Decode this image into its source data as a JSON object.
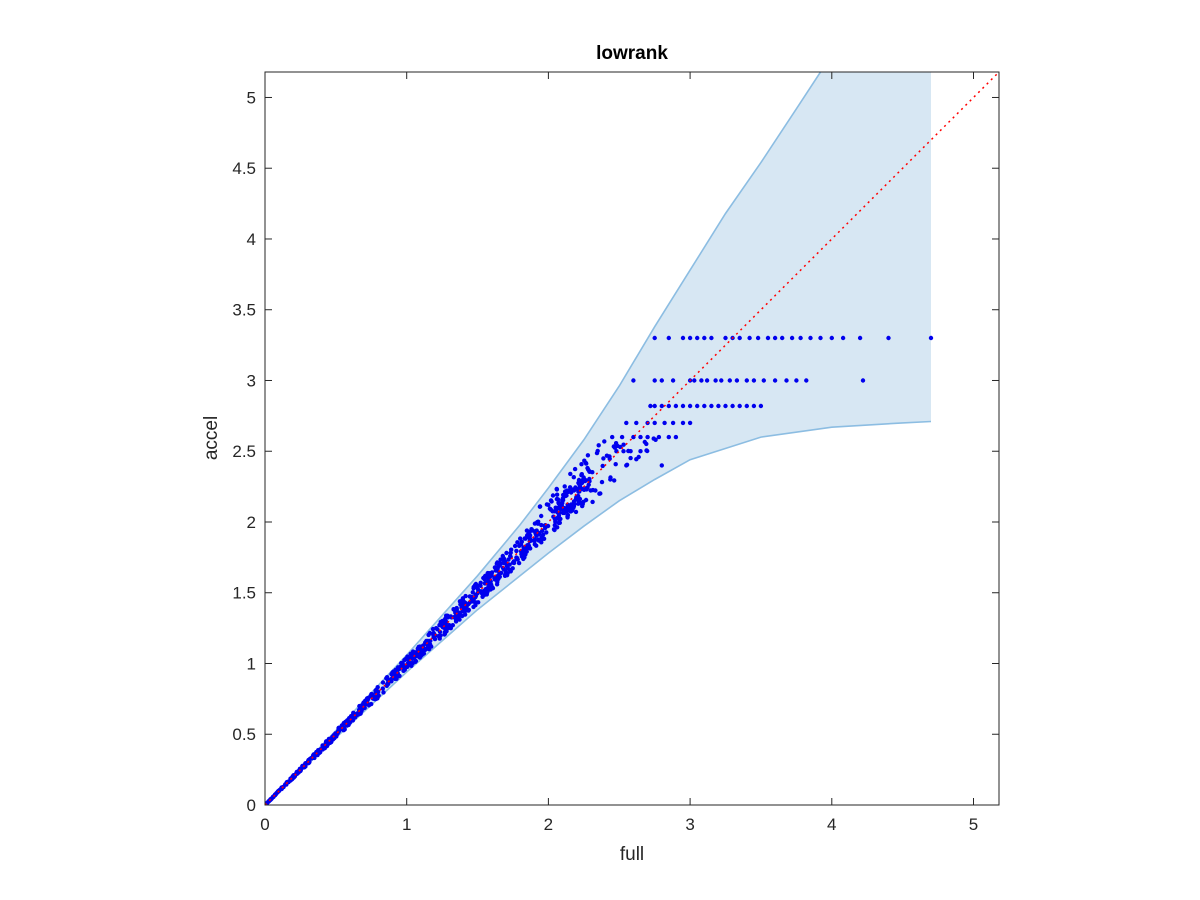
{
  "chart_data": {
    "type": "scatter",
    "title": "lowrank",
    "xlabel": "full",
    "ylabel": "accel",
    "xlim": [
      0,
      5.18
    ],
    "ylim": [
      0,
      5.18
    ],
    "xticks": [
      0,
      1,
      2,
      3,
      4,
      5
    ],
    "xtick_labels": [
      "0",
      "1",
      "2",
      "3",
      "4",
      "5"
    ],
    "yticks": [
      0,
      0.5,
      1,
      1.5,
      2,
      2.5,
      3,
      3.5,
      4,
      4.5,
      5
    ],
    "ytick_labels": [
      "0",
      "0.5",
      "1",
      "1.5",
      "2",
      "2.5",
      "3",
      "3.5",
      "4",
      "4.5",
      "5"
    ],
    "grid": false,
    "colors": {
      "points": "#0000ee",
      "band_fill": "#d7e7f3",
      "band_edge": "#8cbde2",
      "reference_line": "#ff0000",
      "axes": "#262626"
    },
    "band": {
      "upper": [
        [
          0,
          0
        ],
        [
          0.5,
          0.525
        ],
        [
          1,
          1.06
        ],
        [
          1.5,
          1.62
        ],
        [
          1.8,
          1.98
        ],
        [
          2,
          2.24
        ],
        [
          2.25,
          2.58
        ],
        [
          2.5,
          2.96
        ],
        [
          2.75,
          3.38
        ],
        [
          3,
          3.78
        ],
        [
          3.25,
          4.18
        ],
        [
          3.5,
          4.54
        ],
        [
          3.75,
          4.92
        ],
        [
          3.92,
          5.18
        ],
        [
          4.7,
          5.18
        ]
      ],
      "lower": [
        [
          0,
          0
        ],
        [
          0.5,
          0.475
        ],
        [
          1,
          0.94
        ],
        [
          1.5,
          1.38
        ],
        [
          1.75,
          1.58
        ],
        [
          2,
          1.78
        ],
        [
          2.25,
          1.97
        ],
        [
          2.5,
          2.15
        ],
        [
          2.75,
          2.3
        ],
        [
          3,
          2.44
        ],
        [
          3.5,
          2.6
        ],
        [
          4,
          2.67
        ],
        [
          4.5,
          2.7
        ],
        [
          4.7,
          2.71
        ]
      ]
    },
    "reference_line": {
      "x": [
        0,
        5.18
      ],
      "y": [
        0,
        5.18
      ],
      "style": "dotted"
    },
    "scatter_regions": {
      "diagonal": {
        "x_range": [
          0,
          2.3
        ],
        "relative_spread": 0.055,
        "count": 760
      },
      "transition": {
        "x_range": [
          1.9,
          2.9
        ],
        "y_range": [
          2.05,
          2.6
        ],
        "count": 80
      }
    },
    "plateau_rows": [
      {
        "y": 2.4,
        "x": [
          2.55,
          2.8
        ]
      },
      {
        "y": 2.5,
        "x": [
          2.48,
          2.53,
          2.58,
          2.65
        ]
      },
      {
        "y": 2.6,
        "x": [
          2.45,
          2.52,
          2.6,
          2.65,
          2.7,
          2.78,
          2.85,
          2.9
        ]
      },
      {
        "y": 2.7,
        "x": [
          2.55,
          2.62,
          2.7,
          2.75,
          2.82,
          2.88,
          2.95,
          3.0
        ]
      },
      {
        "y": 2.82,
        "x": [
          2.72,
          2.75,
          2.8,
          2.85,
          2.9,
          2.95,
          3.0,
          3.05,
          3.1,
          3.15,
          3.2,
          3.25,
          3.3,
          3.35,
          3.4,
          3.45,
          3.5
        ]
      },
      {
        "y": 3.0,
        "x": [
          2.6,
          2.75,
          2.8,
          2.88,
          3.0,
          3.03,
          3.08,
          3.12,
          3.18,
          3.22,
          3.28,
          3.33,
          3.4,
          3.45,
          3.52,
          3.6,
          3.68,
          3.75,
          3.82,
          4.22
        ]
      },
      {
        "y": 3.3,
        "x": [
          2.75,
          2.85,
          2.95,
          3.0,
          3.05,
          3.1,
          3.15,
          3.25,
          3.3,
          3.35,
          3.42,
          3.48,
          3.55,
          3.6,
          3.65,
          3.72,
          3.78,
          3.85,
          3.92,
          4.0,
          4.08,
          4.2,
          4.4,
          4.7
        ]
      }
    ]
  }
}
